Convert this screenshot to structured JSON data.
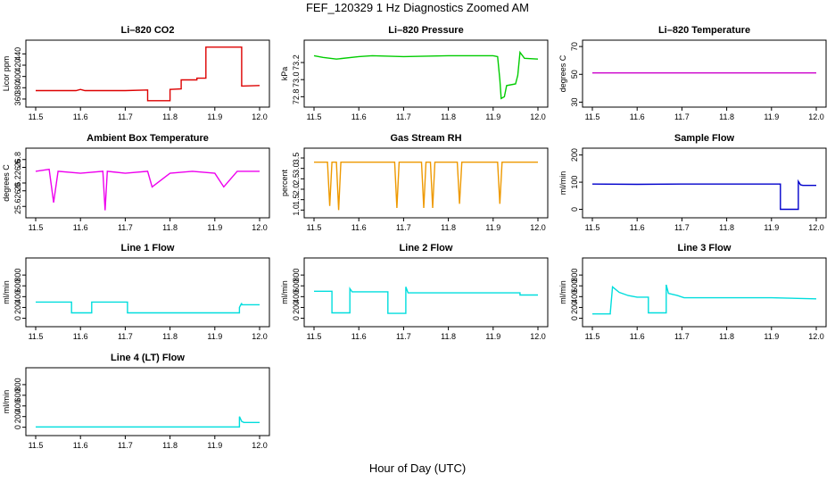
{
  "figure": {
    "title": "FEF_120329  1 Hz Diagnostics Zoomed AM",
    "xlabel": "Hour of Day (UTC)"
  },
  "chart_data": [
    {
      "type": "line",
      "title": "Li–820 CO2",
      "ylabel": "Licor ppm",
      "color": "#dd0000",
      "xlim": [
        11.5,
        12.0
      ],
      "xticks": [
        "11.5",
        "11.6",
        "11.7",
        "11.8",
        "11.9",
        "12.0"
      ],
      "ylim": [
        352,
        458
      ],
      "yticks": [
        {
          "v": 360,
          "t": "360"
        },
        {
          "v": 380,
          "t": "380"
        },
        {
          "v": 400,
          "t": "400"
        },
        {
          "v": 420,
          "t": "420"
        },
        {
          "v": 440,
          "t": "440"
        }
      ],
      "series": [
        {
          "x": [
            11.5,
            11.59,
            11.6,
            11.61,
            11.7,
            11.75,
            11.75,
            11.8,
            11.8,
            11.825,
            11.825,
            11.86,
            11.86,
            11.88,
            11.88,
            11.96,
            11.96,
            12.0
          ],
          "y": [
            375,
            375,
            377,
            375,
            375,
            376,
            357,
            357,
            377,
            378,
            394,
            394,
            397,
            397,
            452,
            452,
            383,
            384
          ]
        }
      ]
    },
    {
      "type": "line",
      "title": "Li–820 Pressure",
      "ylabel": "kPa",
      "color": "#00cc00",
      "xlim": [
        11.5,
        12.0
      ],
      "xticks": [
        "11.5",
        "11.6",
        "11.7",
        "11.8",
        "11.9",
        "12.0"
      ],
      "ylim": [
        72.72,
        73.42
      ],
      "yticks": [
        {
          "v": 72.8,
          "t": "72.8"
        },
        {
          "v": 73.0,
          "t": "73.0"
        },
        {
          "v": 73.2,
          "t": "73.2"
        }
      ],
      "series": [
        {
          "x": [
            11.5,
            11.52,
            11.55,
            11.6,
            11.63,
            11.7,
            11.8,
            11.9,
            11.91,
            11.915,
            11.918,
            11.925,
            11.93,
            11.95,
            11.955,
            11.96,
            11.97,
            12.0
          ],
          "y": [
            73.28,
            73.26,
            73.24,
            73.27,
            73.28,
            73.27,
            73.28,
            73.28,
            73.27,
            73.0,
            72.78,
            72.8,
            72.93,
            72.95,
            73.05,
            73.32,
            73.25,
            73.24
          ]
        }
      ]
    },
    {
      "type": "line",
      "title": "Li–820 Temperature",
      "ylabel": "degrees C",
      "color": "#cc00cc",
      "xlim": [
        11.5,
        12.0
      ],
      "xticks": [
        "11.5",
        "11.6",
        "11.7",
        "11.8",
        "11.9",
        "12.0"
      ],
      "ylim": [
        29,
        72
      ],
      "yticks": [
        {
          "v": 30,
          "t": "30"
        },
        {
          "v": 50,
          "t": "50"
        },
        {
          "v": 70,
          "t": "70"
        }
      ],
      "series": [
        {
          "x": [
            11.5,
            12.0
          ],
          "y": [
            51,
            51
          ]
        }
      ]
    },
    {
      "type": "line",
      "title": "Ambient Box Temperature",
      "ylabel": "degrees C",
      "color": "#ee00ee",
      "xlim": [
        11.5,
        12.0
      ],
      "xticks": [
        "11.5",
        "11.6",
        "11.7",
        "11.8",
        "11.9",
        "12.0"
      ],
      "ylim": [
        25.4,
        27.0
      ],
      "yticks": [
        {
          "v": 25.6,
          "t": "25.6"
        },
        {
          "v": 26.0,
          "t": "26.0"
        },
        {
          "v": 26.2,
          "t": "26.2"
        },
        {
          "v": 26.6,
          "t": "26.6"
        },
        {
          "v": 26.8,
          "t": "26.8"
        }
      ],
      "series": [
        {
          "x": [
            11.5,
            11.53,
            11.54,
            11.55,
            11.6,
            11.65,
            11.655,
            11.66,
            11.7,
            11.75,
            11.76,
            11.8,
            11.85,
            11.9,
            11.92,
            11.95,
            12.0
          ],
          "y": [
            26.5,
            26.55,
            25.7,
            26.5,
            26.45,
            26.5,
            25.5,
            26.5,
            26.45,
            26.5,
            26.1,
            26.45,
            26.5,
            26.45,
            26.1,
            26.5,
            26.5
          ]
        }
      ]
    },
    {
      "type": "line",
      "title": "Gas Stream RH",
      "ylabel": "percent",
      "color": "#ee9900",
      "xlim": [
        11.5,
        12.0
      ],
      "xticks": [
        "11.5",
        "11.6",
        "11.7",
        "11.8",
        "11.9",
        "12.0"
      ],
      "ylim": [
        0.8,
        3.8
      ],
      "yticks": [
        {
          "v": 1.0,
          "t": "1.0"
        },
        {
          "v": 1.5,
          "t": "1.5"
        },
        {
          "v": 2.0,
          "t": "2.0"
        },
        {
          "v": 2.5,
          "t": "2.5"
        },
        {
          "v": 3.0,
          "t": "3.0"
        },
        {
          "v": 3.5,
          "t": "3.5"
        }
      ],
      "series": [
        {
          "x": [
            11.5,
            11.53,
            11.535,
            11.54,
            11.55,
            11.555,
            11.56,
            11.68,
            11.685,
            11.69,
            11.74,
            11.745,
            11.75,
            11.76,
            11.765,
            11.77,
            11.82,
            11.825,
            11.83,
            11.91,
            11.915,
            11.92,
            12.0
          ],
          "y": [
            3.3,
            3.3,
            1.2,
            3.3,
            3.3,
            1.0,
            3.3,
            3.3,
            1.1,
            3.3,
            3.3,
            1.1,
            3.3,
            3.3,
            1.1,
            3.3,
            3.3,
            1.3,
            3.3,
            3.3,
            1.3,
            3.3,
            3.3
          ]
        }
      ]
    },
    {
      "type": "line",
      "title": "Sample Flow",
      "ylabel": "ml/min",
      "color": "#0000cc",
      "xlim": [
        11.5,
        12.0
      ],
      "xticks": [
        "11.5",
        "11.6",
        "11.7",
        "11.8",
        "11.9",
        "12.0"
      ],
      "ylim": [
        -18,
        212
      ],
      "yticks": [
        {
          "v": 0,
          "t": "0"
        },
        {
          "v": 100,
          "t": "100"
        },
        {
          "v": 200,
          "t": "200"
        }
      ],
      "series": [
        {
          "x": [
            11.5,
            11.6,
            11.7,
            11.8,
            11.92,
            11.92,
            11.96,
            11.96,
            11.965,
            11.97,
            12.0
          ],
          "y": [
            93,
            92,
            93,
            93,
            93,
            0,
            0,
            103,
            90,
            88,
            88
          ]
        }
      ]
    },
    {
      "type": "line",
      "title": "Line 1 Flow",
      "ylabel": "ml/min",
      "color": "#00dddd",
      "xlim": [
        11.5,
        12.0
      ],
      "xticks": [
        "11.5",
        "11.6",
        "11.7",
        "11.8",
        "11.9",
        "12.0"
      ],
      "ylim": [
        -90,
        1050
      ],
      "yticks": [
        {
          "v": 0,
          "t": "0"
        },
        {
          "v": 200,
          "t": "200"
        },
        {
          "v": 400,
          "t": "400"
        },
        {
          "v": 600,
          "t": "600"
        },
        {
          "v": 800,
          "t": "800"
        }
      ],
      "series": [
        {
          "x": [
            11.5,
            11.58,
            11.58,
            11.625,
            11.625,
            11.7,
            11.705,
            11.705,
            11.955,
            11.955,
            11.96,
            11.96,
            12.0
          ],
          "y": [
            300,
            300,
            100,
            100,
            300,
            300,
            300,
            100,
            100,
            200,
            280,
            250,
            250
          ]
        }
      ]
    },
    {
      "type": "line",
      "title": "Line 2 Flow",
      "ylabel": "ml/min",
      "color": "#00dddd",
      "xlim": [
        11.5,
        12.0
      ],
      "xticks": [
        "11.5",
        "11.6",
        "11.7",
        "11.8",
        "11.9",
        "12.0"
      ],
      "ylim": [
        -90,
        1050
      ],
      "yticks": [
        {
          "v": 0,
          "t": "0"
        },
        {
          "v": 200,
          "t": "200"
        },
        {
          "v": 400,
          "t": "400"
        },
        {
          "v": 600,
          "t": "600"
        },
        {
          "v": 800,
          "t": "800"
        }
      ],
      "series": [
        {
          "x": [
            11.5,
            11.54,
            11.54,
            11.58,
            11.58,
            11.585,
            11.665,
            11.665,
            11.705,
            11.705,
            11.71,
            11.96,
            11.96,
            12.0
          ],
          "y": [
            500,
            500,
            100,
            100,
            550,
            490,
            490,
            90,
            90,
            580,
            470,
            470,
            430,
            430
          ]
        }
      ]
    },
    {
      "type": "line",
      "title": "Line 3 Flow",
      "ylabel": "ml/min",
      "color": "#00dddd",
      "xlim": [
        11.5,
        12.0
      ],
      "xticks": [
        "11.5",
        "11.6",
        "11.7",
        "11.8",
        "11.9",
        "12.0"
      ],
      "ylim": [
        -90,
        1050
      ],
      "yticks": [
        {
          "v": 0,
          "t": "0"
        },
        {
          "v": 200,
          "t": "200"
        },
        {
          "v": 400,
          "t": "400"
        },
        {
          "v": 600,
          "t": "600"
        },
        {
          "v": 800,
          "t": "800"
        }
      ],
      "series": [
        {
          "x": [
            11.5,
            11.54,
            11.54,
            11.545,
            11.56,
            11.58,
            11.6,
            11.625,
            11.625,
            11.665,
            11.665,
            11.67,
            11.69,
            11.705,
            11.705,
            11.8,
            11.9,
            12.0
          ],
          "y": [
            80,
            80,
            100,
            580,
            480,
            420,
            390,
            390,
            100,
            100,
            620,
            460,
            420,
            380,
            380,
            380,
            380,
            360
          ]
        }
      ]
    },
    {
      "type": "line",
      "title": "Line 4 (LT) Flow",
      "ylabel": "ml/min",
      "color": "#00dddd",
      "xlim": [
        11.5,
        12.0
      ],
      "xticks": [
        "11.5",
        "11.6",
        "11.7",
        "11.8",
        "11.9",
        "12.0"
      ],
      "ylim": [
        -90,
        1050
      ],
      "yticks": [
        {
          "v": 0,
          "t": "0"
        },
        {
          "v": 200,
          "t": "200"
        },
        {
          "v": 400,
          "t": "400"
        },
        {
          "v": 600,
          "t": "600"
        },
        {
          "v": 800,
          "t": "800"
        }
      ],
      "series": [
        {
          "x": [
            11.5,
            11.955,
            11.955,
            11.96,
            11.965,
            12.0
          ],
          "y": [
            5,
            5,
            200,
            110,
            90,
            90
          ]
        }
      ]
    }
  ]
}
